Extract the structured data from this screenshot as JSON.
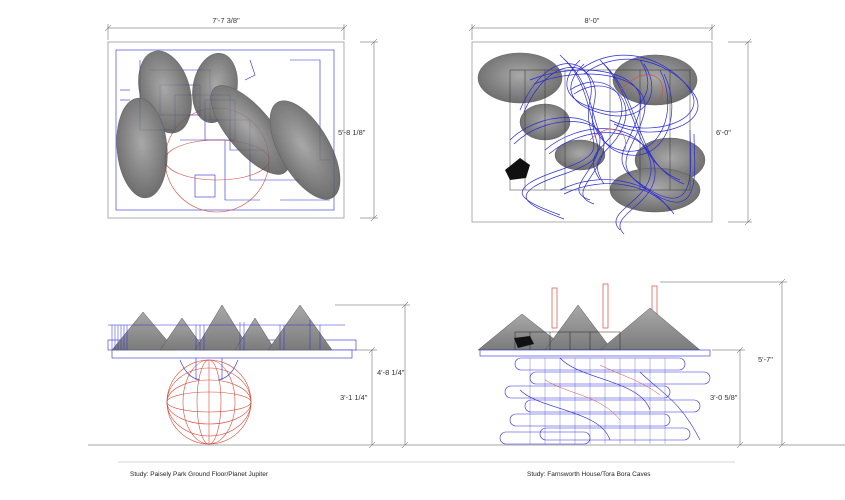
{
  "dimensions": {
    "a_plan_width": "7'-7 3/8\"",
    "a_plan_height": "5'-8 1/8\"",
    "b_plan_width": "8'-0\"",
    "b_plan_height": "6'-0\"",
    "a_elev_total": "4'-8 1/4\"",
    "a_elev_lower": "3'-1 1/4\"",
    "b_elev_total": "5'-7\"",
    "b_elev_lower": "3'-0 5/8\""
  },
  "captions": {
    "study_a": "Study: Paisely Park Ground Floor/Planet Jupiter",
    "study_b": "Study: Farnsworth House/Tora Bora Caves"
  },
  "colors": {
    "line_blue": "#2a2ad6",
    "line_red": "#d94a3a",
    "shadow_gray": "#7d7d7d",
    "dim_gray": "#555555"
  }
}
